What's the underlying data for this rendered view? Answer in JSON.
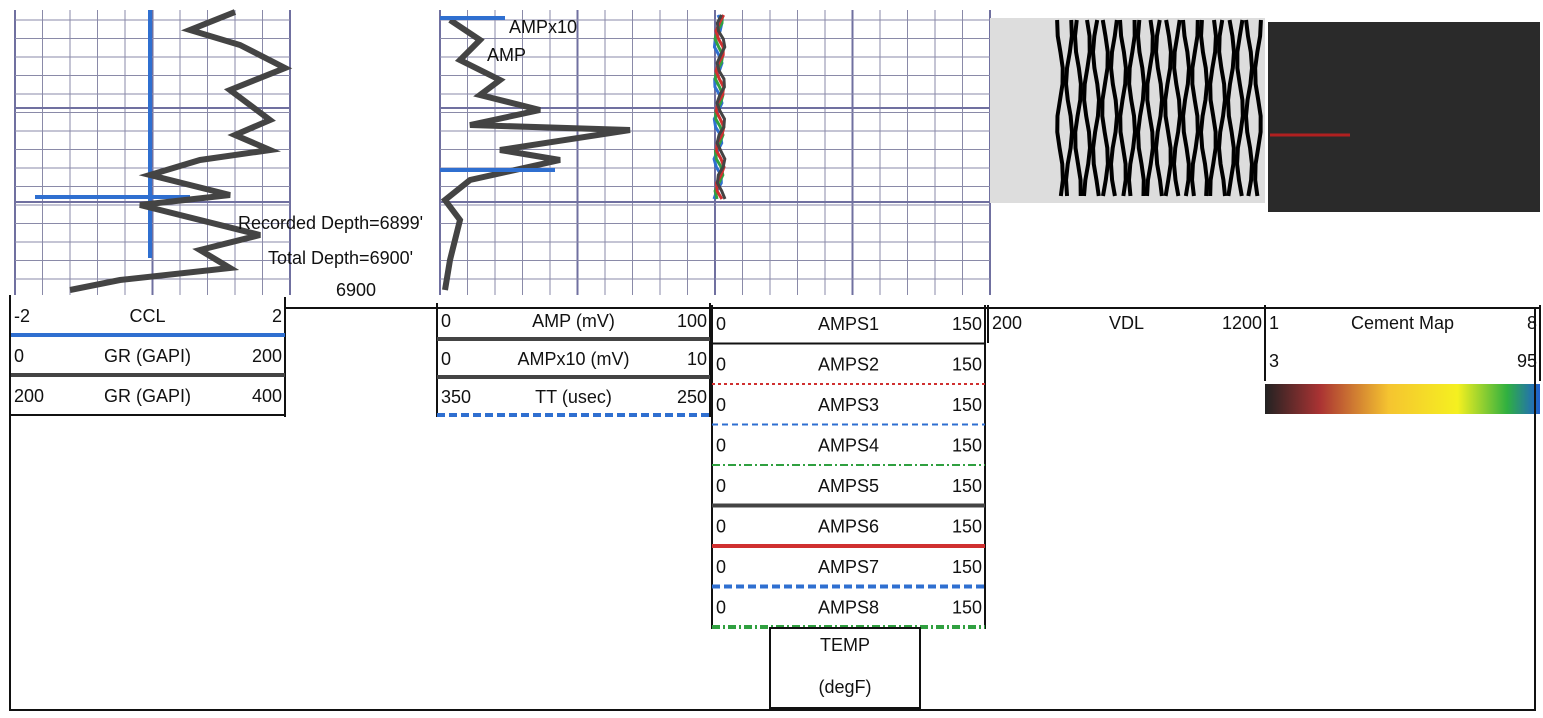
{
  "log": {
    "annotations": {
      "amp_x10": "AMPx10",
      "amp": "AMP",
      "recorded_depth": "Recorded Depth=6899'",
      "total_depth": "Total Depth=6900'",
      "depth": 6900
    },
    "headers": [
      {
        "rows": [
          {
            "left": -2,
            "name": "CCL",
            "right": 2
          },
          {
            "left": 0,
            "name": "GR (GAPI)",
            "right": 200
          },
          {
            "left": 200,
            "name": "GR (GAPI)",
            "right": 400
          }
        ]
      },
      {
        "rows": [
          {
            "left": 0,
            "name": "AMP (mV)",
            "right": 100
          },
          {
            "left": 0,
            "name": "AMPx10 (mV)",
            "right": 10
          },
          {
            "left": 350,
            "name": "TT (usec)",
            "right": 250
          }
        ]
      },
      {
        "rows": [
          {
            "left": 0,
            "name": "AMPS1",
            "right": 150
          },
          {
            "left": 0,
            "name": "AMPS2",
            "right": 150
          },
          {
            "left": 0,
            "name": "AMPS3",
            "right": 150
          },
          {
            "left": 0,
            "name": "AMPS4",
            "right": 150
          },
          {
            "left": 0,
            "name": "AMPS5",
            "right": 150
          },
          {
            "left": 0,
            "name": "AMPS6",
            "right": 150
          },
          {
            "left": 0,
            "name": "AMPS7",
            "right": 150
          },
          {
            "left": 0,
            "name": "AMPS8",
            "right": 150
          }
        ]
      },
      {
        "rows": [
          {
            "left": 200,
            "name": "VDL",
            "right": 1200
          }
        ]
      },
      {
        "rows": [
          {
            "left": 1,
            "name": "Cement Map",
            "right": 8
          },
          {
            "left": 3,
            "right": 95
          }
        ]
      }
    ],
    "temp": {
      "name": "TEMP",
      "unit": "(degF)"
    }
  }
}
